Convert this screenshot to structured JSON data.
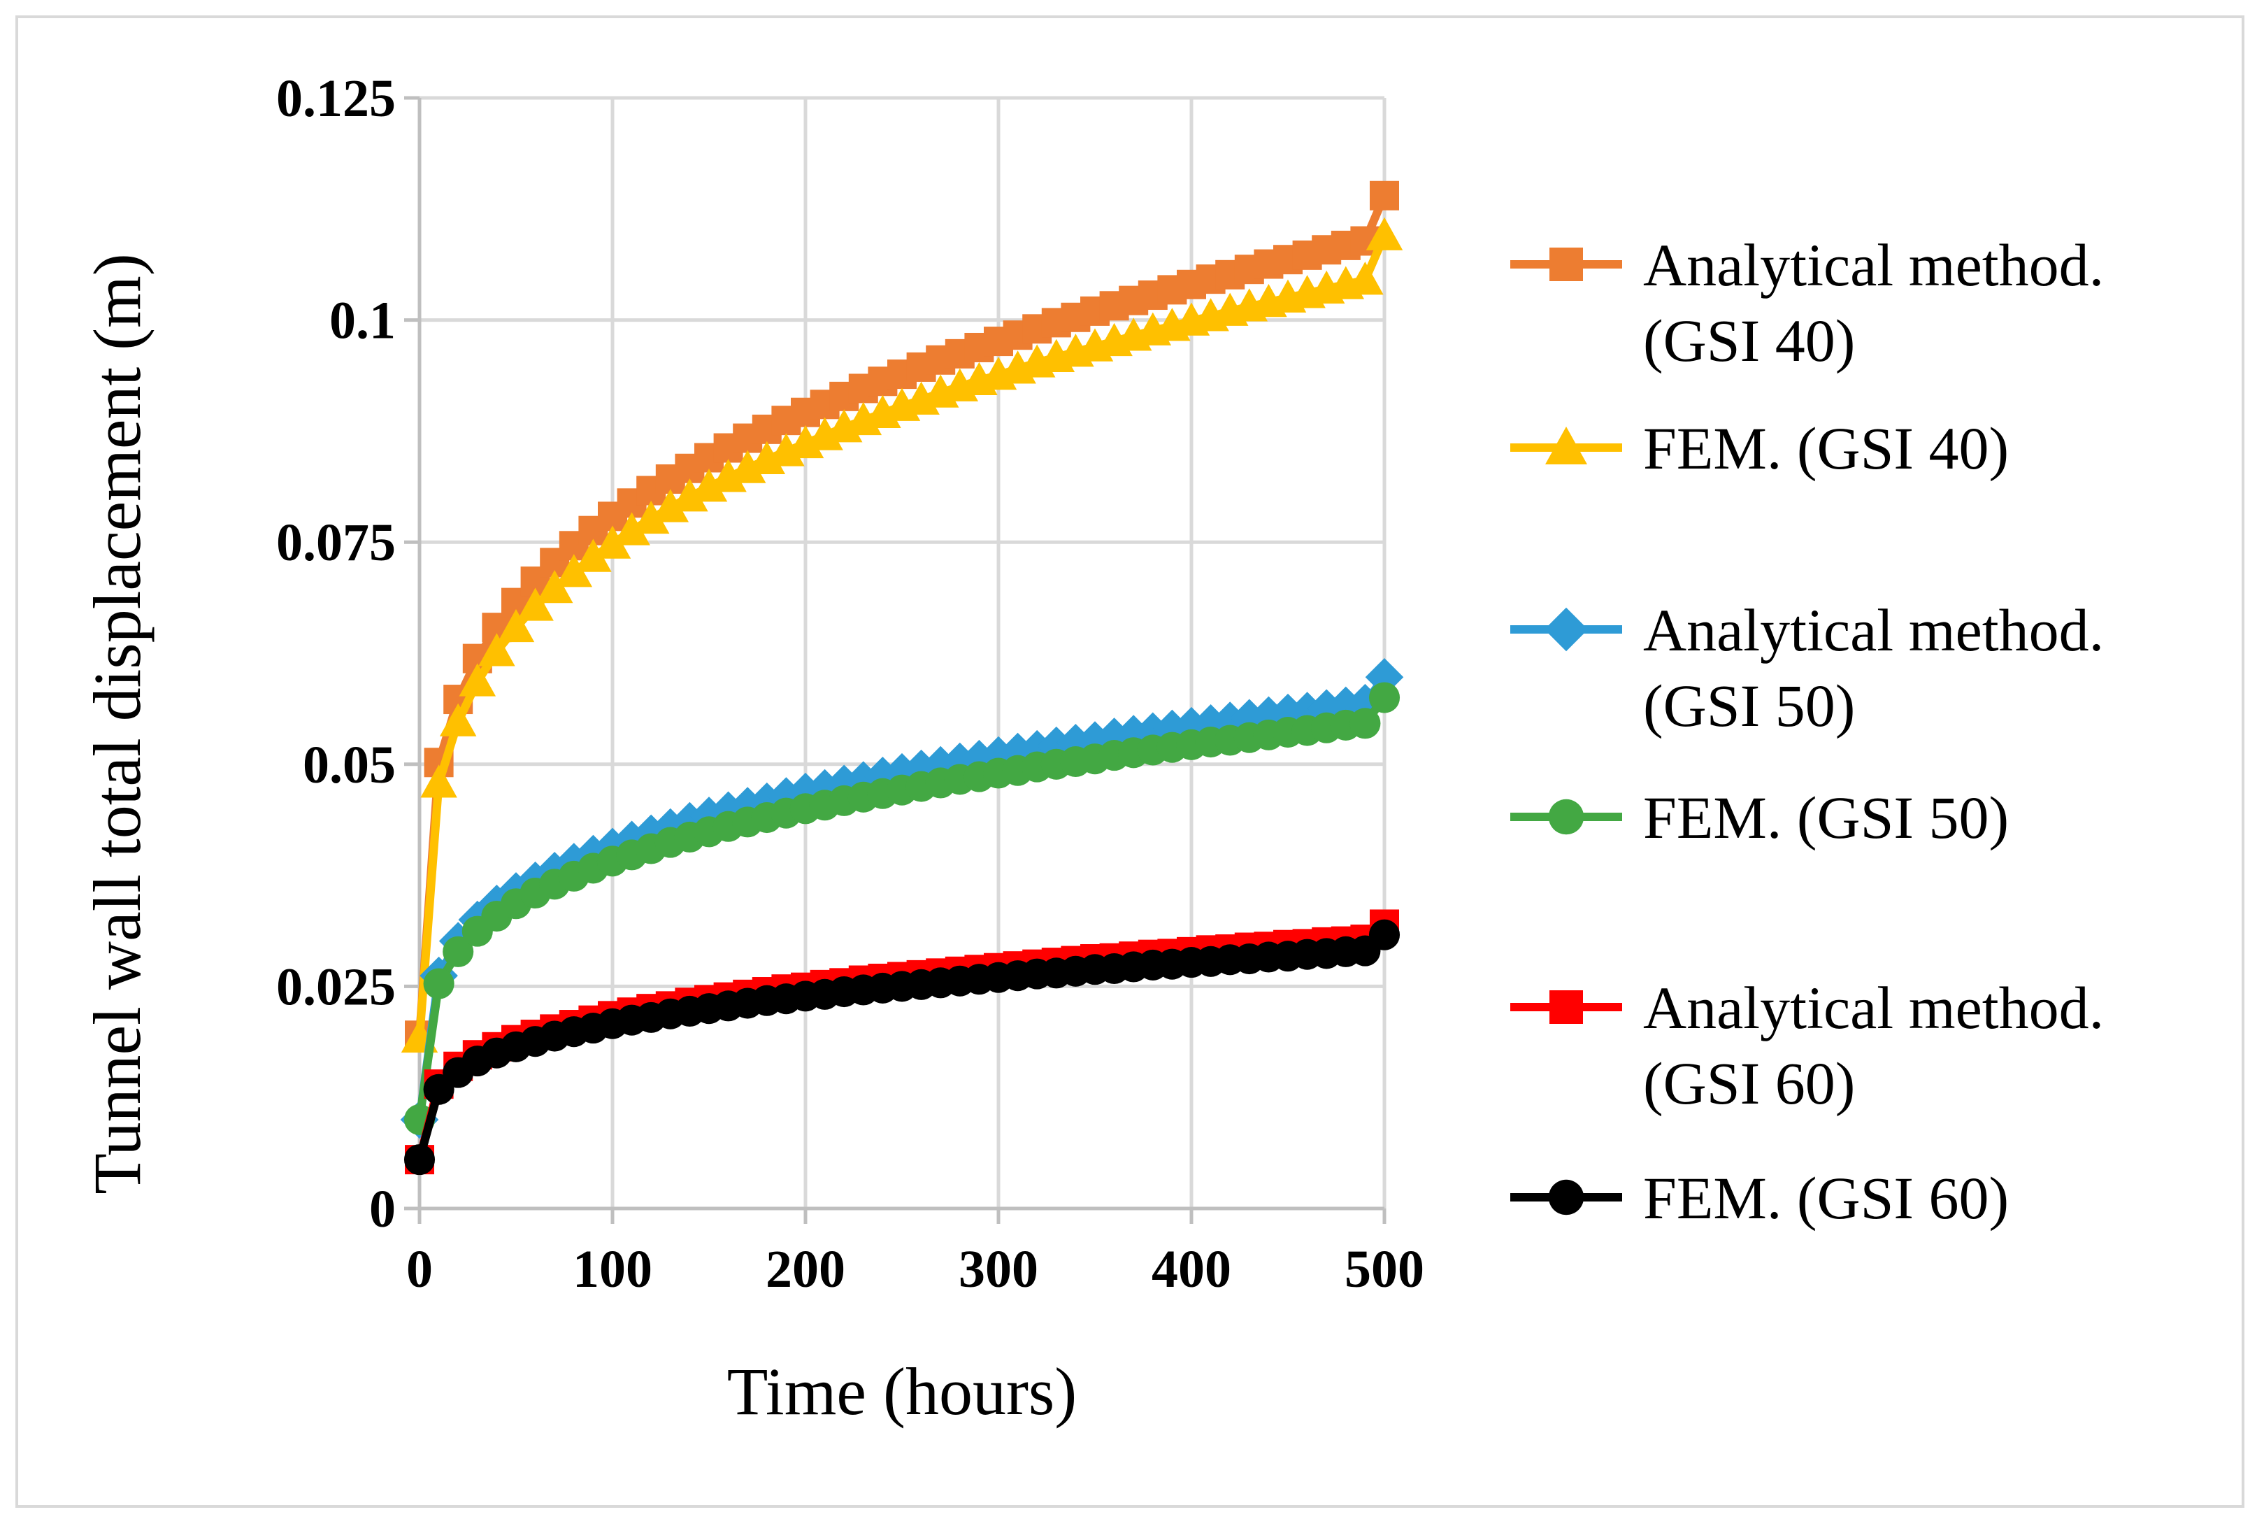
{
  "chart_data": {
    "type": "line",
    "title": "",
    "xlabel": "Time (hours)",
    "ylabel": "Tunnel wall total displacement (m)",
    "xlim": [
      0,
      500
    ],
    "ylim": [
      0,
      0.125
    ],
    "x_ticks": [
      0,
      100,
      200,
      300,
      400,
      500
    ],
    "x_tick_labels": [
      "0",
      "100",
      "200",
      "300",
      "400",
      "500"
    ],
    "y_ticks": [
      0,
      0.025,
      0.05,
      0.075,
      0.1,
      0.125
    ],
    "y_tick_labels": [
      "0",
      "0.025",
      "0.05",
      "0.075",
      "0.1",
      "0.125"
    ],
    "grid": true,
    "legend_position": "right",
    "x": [
      0,
      10,
      20,
      30,
      40,
      50,
      60,
      70,
      80,
      90,
      100,
      110,
      120,
      130,
      140,
      150,
      160,
      170,
      180,
      190,
      200,
      210,
      220,
      230,
      240,
      250,
      260,
      270,
      280,
      290,
      300,
      310,
      320,
      330,
      340,
      350,
      360,
      370,
      380,
      390,
      400,
      410,
      420,
      430,
      440,
      450,
      460,
      470,
      480,
      490,
      500
    ],
    "series": [
      {
        "name": "Analytical method. (GSI 40)",
        "name_lines": [
          "Analytical method.",
          "(GSI 40)"
        ],
        "color": "#ed7d31",
        "marker": "square",
        "values": [
          0.0195,
          0.0502,
          0.0573,
          0.0619,
          0.0654,
          0.0682,
          0.0706,
          0.0727,
          0.0746,
          0.0763,
          0.0779,
          0.0794,
          0.0808,
          0.0821,
          0.0833,
          0.0845,
          0.0856,
          0.0867,
          0.0877,
          0.0887,
          0.0896,
          0.0905,
          0.0914,
          0.0923,
          0.0931,
          0.0939,
          0.0947,
          0.0955,
          0.0962,
          0.0969,
          0.0976,
          0.0983,
          0.099,
          0.0997,
          0.1003,
          0.101,
          0.1016,
          0.1022,
          0.1028,
          0.1034,
          0.104,
          0.1046,
          0.1051,
          0.1057,
          0.1063,
          0.1068,
          0.1073,
          0.1079,
          0.1084,
          0.1089,
          0.114
        ]
      },
      {
        "name": "FEM. (GSI 40)",
        "name_lines": [
          "FEM. (GSI 40)"
        ],
        "color": "#ffc000",
        "marker": "triangle",
        "values": [
          0.0192,
          0.0479,
          0.0548,
          0.0593,
          0.0627,
          0.0654,
          0.0678,
          0.0698,
          0.0716,
          0.0733,
          0.0748,
          0.0763,
          0.0776,
          0.0789,
          0.0801,
          0.0812,
          0.0823,
          0.0833,
          0.0843,
          0.0852,
          0.0861,
          0.087,
          0.0879,
          0.0887,
          0.0895,
          0.0903,
          0.091,
          0.0918,
          0.0925,
          0.0932,
          0.0938,
          0.0945,
          0.0952,
          0.0958,
          0.0964,
          0.097,
          0.0976,
          0.0982,
          0.0988,
          0.0993,
          0.0999,
          0.1004,
          0.101,
          0.1015,
          0.102,
          0.1025,
          0.103,
          0.1035,
          0.104,
          0.1045,
          0.1095
        ]
      },
      {
        "name": "Analytical method. (GSI 50)",
        "name_lines": [
          "Analytical method.",
          "(GSI 50)"
        ],
        "color": "#2e9bd6",
        "marker": "diamond",
        "values": [
          0.01,
          0.0262,
          0.0301,
          0.0325,
          0.0343,
          0.0357,
          0.0369,
          0.038,
          0.039,
          0.0399,
          0.0407,
          0.0415,
          0.0422,
          0.0429,
          0.0436,
          0.0442,
          0.0448,
          0.0453,
          0.0458,
          0.0464,
          0.0469,
          0.0473,
          0.0478,
          0.0482,
          0.0487,
          0.0491,
          0.0495,
          0.0499,
          0.0503,
          0.0506,
          0.051,
          0.0514,
          0.0517,
          0.0521,
          0.0524,
          0.0527,
          0.0531,
          0.0534,
          0.0537,
          0.054,
          0.0543,
          0.0546,
          0.0549,
          0.0552,
          0.0555,
          0.0558,
          0.056,
          0.0563,
          0.0566,
          0.0569,
          0.0598
        ]
      },
      {
        "name": "FEM. (GSI 50)",
        "name_lines": [
          "FEM. (GSI 50)"
        ],
        "color": "#43a843",
        "marker": "circle",
        "values": [
          0.01,
          0.0253,
          0.0289,
          0.0312,
          0.0329,
          0.0343,
          0.0355,
          0.0365,
          0.0374,
          0.0383,
          0.0391,
          0.0398,
          0.0405,
          0.0412,
          0.0418,
          0.0424,
          0.043,
          0.0435,
          0.044,
          0.0445,
          0.045,
          0.0454,
          0.0459,
          0.0463,
          0.0467,
          0.0471,
          0.0475,
          0.0479,
          0.0483,
          0.0486,
          0.049,
          0.0493,
          0.0497,
          0.05,
          0.0503,
          0.0506,
          0.051,
          0.0513,
          0.0516,
          0.0519,
          0.0522,
          0.0525,
          0.0527,
          0.053,
          0.0533,
          0.0536,
          0.0538,
          0.0541,
          0.0544,
          0.0546,
          0.0575
        ]
      },
      {
        "name": "Analytical method. (GSI 60)",
        "name_lines": [
          "Analytical method.",
          "(GSI 60)"
        ],
        "color": "#ff0000",
        "marker": "square",
        "values": [
          0.0055,
          0.014,
          0.016,
          0.0173,
          0.0182,
          0.019,
          0.0196,
          0.0202,
          0.0207,
          0.0212,
          0.0217,
          0.0221,
          0.0225,
          0.0228,
          0.0232,
          0.0235,
          0.0238,
          0.0241,
          0.0244,
          0.0247,
          0.0249,
          0.0252,
          0.0254,
          0.0257,
          0.0259,
          0.0261,
          0.0263,
          0.0265,
          0.0267,
          0.0269,
          0.0271,
          0.0273,
          0.0275,
          0.0277,
          0.0279,
          0.0281,
          0.0282,
          0.0284,
          0.0286,
          0.0287,
          0.0289,
          0.0291,
          0.0292,
          0.0294,
          0.0295,
          0.0297,
          0.0298,
          0.03,
          0.0301,
          0.0303,
          0.032
        ]
      },
      {
        "name": "FEM. (GSI 60)",
        "name_lines": [
          "FEM. (GSI 60)"
        ],
        "color": "#000000",
        "marker": "circle",
        "values": [
          0.0055,
          0.0134,
          0.0153,
          0.0166,
          0.0175,
          0.0182,
          0.0188,
          0.0194,
          0.0199,
          0.0203,
          0.0208,
          0.0212,
          0.0215,
          0.0219,
          0.0222,
          0.0225,
          0.0228,
          0.0231,
          0.0234,
          0.0236,
          0.0239,
          0.0241,
          0.0244,
          0.0246,
          0.0248,
          0.025,
          0.0252,
          0.0254,
          0.0256,
          0.0258,
          0.026,
          0.0262,
          0.0264,
          0.0265,
          0.0267,
          0.0269,
          0.027,
          0.0272,
          0.0274,
          0.0275,
          0.0277,
          0.0278,
          0.028,
          0.0281,
          0.0283,
          0.0284,
          0.0286,
          0.0287,
          0.0289,
          0.029,
          0.0308
        ]
      }
    ]
  }
}
